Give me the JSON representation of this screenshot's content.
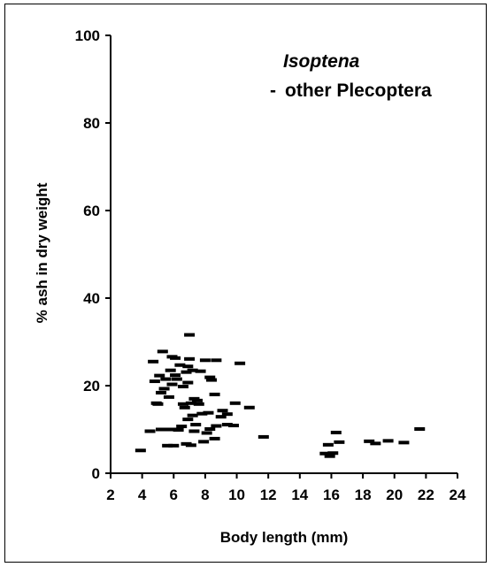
{
  "chart_data": {
    "type": "scatter",
    "xlabel": "Body length (mm)",
    "ylabel": "% ash in dry weight",
    "xlim": [
      2,
      24
    ],
    "ylim": [
      0,
      100
    ],
    "xticks": [
      "2",
      "4",
      "6",
      "8",
      "10",
      "12",
      "14",
      "16",
      "18",
      "20",
      "22",
      "24"
    ],
    "yticks": [
      "0",
      "20",
      "40",
      "60",
      "80",
      "100"
    ],
    "grid": false,
    "legend_placement": "top-right",
    "legend": {
      "line1": "Isoptena",
      "line2": "other Plecoptera",
      "marker": "-"
    },
    "series": [
      {
        "name": "other Plecoptera",
        "marker": "dash",
        "color": "#000000",
        "points": [
          [
            3.9,
            5.2
          ],
          [
            4.5,
            9.6
          ],
          [
            4.7,
            25.5
          ],
          [
            4.8,
            21.0
          ],
          [
            4.9,
            16.0
          ],
          [
            5.0,
            15.8
          ],
          [
            5.1,
            22.3
          ],
          [
            5.2,
            10.0
          ],
          [
            5.2,
            18.4
          ],
          [
            5.3,
            27.8
          ],
          [
            5.4,
            19.3
          ],
          [
            5.5,
            21.5
          ],
          [
            5.6,
            6.3
          ],
          [
            5.6,
            10.0
          ],
          [
            5.7,
            17.4
          ],
          [
            5.8,
            23.5
          ],
          [
            5.9,
            26.6
          ],
          [
            5.9,
            20.3
          ],
          [
            6.0,
            10.0
          ],
          [
            6.0,
            6.3
          ],
          [
            6.1,
            22.4
          ],
          [
            6.1,
            26.3
          ],
          [
            6.2,
            21.5
          ],
          [
            6.3,
            9.9
          ],
          [
            6.4,
            24.7
          ],
          [
            6.5,
            10.7
          ],
          [
            6.6,
            19.8
          ],
          [
            6.6,
            15.8
          ],
          [
            6.7,
            15.0
          ],
          [
            6.8,
            6.7
          ],
          [
            6.8,
            23.1
          ],
          [
            6.9,
            12.3
          ],
          [
            6.9,
            24.4
          ],
          [
            6.9,
            20.7
          ],
          [
            7.0,
            31.6
          ],
          [
            7.0,
            26.1
          ],
          [
            7.1,
            16.0
          ],
          [
            7.1,
            6.4
          ],
          [
            7.2,
            23.5
          ],
          [
            7.2,
            13.2
          ],
          [
            7.3,
            17.0
          ],
          [
            7.3,
            9.6
          ],
          [
            7.4,
            11.1
          ],
          [
            7.5,
            16.6
          ],
          [
            7.6,
            15.8
          ],
          [
            7.7,
            23.3
          ],
          [
            7.8,
            13.6
          ],
          [
            7.9,
            7.2
          ],
          [
            8.0,
            25.8
          ],
          [
            8.1,
            9.2
          ],
          [
            8.2,
            13.8
          ],
          [
            8.3,
            21.9
          ],
          [
            8.3,
            10.1
          ],
          [
            8.4,
            21.3
          ],
          [
            8.6,
            7.9
          ],
          [
            8.6,
            18.0
          ],
          [
            8.7,
            10.8
          ],
          [
            8.7,
            25.8
          ],
          [
            9.0,
            12.9
          ],
          [
            9.1,
            14.3
          ],
          [
            9.4,
            13.5
          ],
          [
            9.4,
            11.1
          ],
          [
            9.8,
            10.9
          ],
          [
            9.9,
            16.0
          ],
          [
            10.2,
            25.1
          ],
          [
            10.8,
            15.0
          ],
          [
            11.7,
            8.3
          ],
          [
            15.6,
            4.5
          ],
          [
            15.8,
            6.5
          ],
          [
            15.9,
            3.9
          ],
          [
            16.1,
            4.6
          ],
          [
            16.3,
            9.3
          ],
          [
            16.5,
            7.1
          ],
          [
            18.4,
            7.3
          ],
          [
            18.8,
            6.8
          ],
          [
            19.6,
            7.4
          ],
          [
            20.6,
            7.0
          ],
          [
            21.6,
            10.1
          ]
        ]
      }
    ]
  }
}
